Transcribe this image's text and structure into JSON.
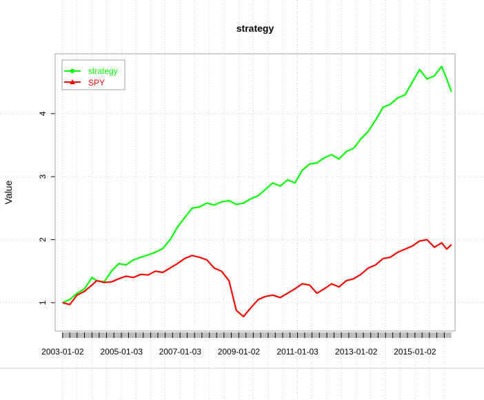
{
  "chart_data": {
    "type": "line",
    "title": "strategy",
    "xlabel": "",
    "ylabel": "Value",
    "x_tick_labels": [
      "2003-01-02",
      "2005-01-03",
      "2007-01-03",
      "2009-01-02",
      "2011-01-03",
      "2013-01-02",
      "2015-01-02"
    ],
    "y_ticks": [
      1,
      2,
      3,
      4
    ],
    "y_tick_labels": [
      "1",
      "2",
      "3",
      "4"
    ],
    "ylim": [
      0.55,
      4.95
    ],
    "xlim": [
      "2002-10-01",
      "2016-05-15"
    ],
    "grid": true,
    "legend_position": "top-left",
    "series": [
      {
        "name": "strategy",
        "color": "#00ff00",
        "x": [
          "2003-01-02",
          "2003-04-01",
          "2003-07-01",
          "2003-10-01",
          "2004-01-02",
          "2004-03-01",
          "2004-06-01",
          "2004-09-01",
          "2004-12-01",
          "2005-03-01",
          "2005-06-01",
          "2005-09-01",
          "2005-12-01",
          "2006-03-01",
          "2006-06-01",
          "2006-09-01",
          "2006-12-01",
          "2007-03-01",
          "2007-06-01",
          "2007-09-01",
          "2007-12-01",
          "2008-03-01",
          "2008-06-01",
          "2008-09-01",
          "2008-12-01",
          "2009-03-01",
          "2009-06-01",
          "2009-09-01",
          "2009-12-01",
          "2010-03-01",
          "2010-06-01",
          "2010-09-01",
          "2010-12-01",
          "2011-03-01",
          "2011-06-01",
          "2011-09-01",
          "2011-12-01",
          "2012-03-01",
          "2012-06-01",
          "2012-09-01",
          "2012-12-01",
          "2013-03-01",
          "2013-06-01",
          "2013-09-01",
          "2013-12-01",
          "2014-03-01",
          "2014-06-01",
          "2014-09-01",
          "2014-12-01",
          "2015-03-01",
          "2015-06-01",
          "2015-09-01",
          "2015-12-01",
          "2016-02-01",
          "2016-03-31"
        ],
        "y": [
          1.0,
          1.05,
          1.15,
          1.22,
          1.4,
          1.35,
          1.33,
          1.5,
          1.62,
          1.6,
          1.68,
          1.72,
          1.76,
          1.8,
          1.86,
          2.0,
          2.2,
          2.35,
          2.5,
          2.52,
          2.58,
          2.55,
          2.6,
          2.62,
          2.56,
          2.58,
          2.65,
          2.7,
          2.8,
          2.9,
          2.85,
          2.95,
          2.9,
          3.1,
          3.2,
          3.22,
          3.3,
          3.35,
          3.28,
          3.4,
          3.45,
          3.6,
          3.72,
          3.9,
          4.1,
          4.15,
          4.25,
          4.3,
          4.5,
          4.7,
          4.55,
          4.6,
          4.75,
          4.55,
          4.35
        ]
      },
      {
        "name": "SPY",
        "color": "#ff0000",
        "x": [
          "2003-01-02",
          "2003-04-01",
          "2003-07-01",
          "2003-10-01",
          "2004-01-02",
          "2004-03-01",
          "2004-06-01",
          "2004-09-01",
          "2004-12-01",
          "2005-03-01",
          "2005-06-01",
          "2005-09-01",
          "2005-12-01",
          "2006-03-01",
          "2006-06-01",
          "2006-09-01",
          "2006-12-01",
          "2007-03-01",
          "2007-06-01",
          "2007-09-01",
          "2007-12-01",
          "2008-03-01",
          "2008-06-01",
          "2008-09-01",
          "2008-12-01",
          "2009-03-01",
          "2009-06-01",
          "2009-09-01",
          "2009-12-01",
          "2010-03-01",
          "2010-06-01",
          "2010-09-01",
          "2010-12-01",
          "2011-03-01",
          "2011-06-01",
          "2011-09-01",
          "2011-12-01",
          "2012-03-01",
          "2012-06-01",
          "2012-09-01",
          "2012-12-01",
          "2013-03-01",
          "2013-06-01",
          "2013-09-01",
          "2013-12-01",
          "2014-03-01",
          "2014-06-01",
          "2014-09-01",
          "2014-12-01",
          "2015-03-01",
          "2015-06-01",
          "2015-09-01",
          "2015-12-01",
          "2016-02-01",
          "2016-03-31"
        ],
        "y": [
          1.0,
          0.97,
          1.12,
          1.18,
          1.28,
          1.35,
          1.32,
          1.33,
          1.38,
          1.42,
          1.4,
          1.45,
          1.44,
          1.5,
          1.48,
          1.55,
          1.62,
          1.7,
          1.75,
          1.72,
          1.68,
          1.55,
          1.5,
          1.35,
          0.88,
          0.78,
          0.92,
          1.05,
          1.1,
          1.12,
          1.08,
          1.15,
          1.22,
          1.3,
          1.28,
          1.15,
          1.22,
          1.3,
          1.25,
          1.35,
          1.38,
          1.45,
          1.55,
          1.6,
          1.7,
          1.72,
          1.8,
          1.85,
          1.9,
          1.98,
          2.0,
          1.88,
          1.95,
          1.85,
          1.92
        ]
      }
    ]
  }
}
